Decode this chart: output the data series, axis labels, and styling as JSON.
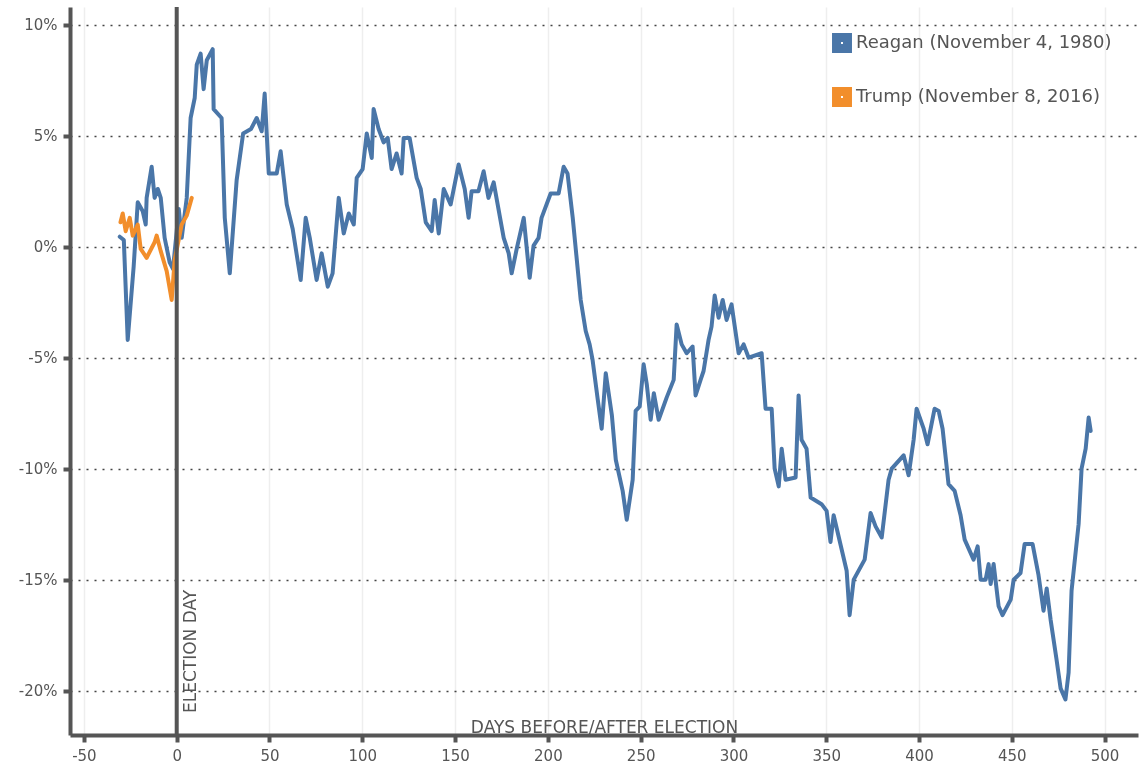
{
  "chart_data": {
    "type": "line",
    "xlabel": "DAYS BEFORE/AFTER ELECTION",
    "xlim": [
      -57.5,
      518
    ],
    "xticks": [
      -50,
      0,
      50,
      100,
      150,
      200,
      250,
      300,
      350,
      400,
      450,
      500
    ],
    "ylim": [
      -22,
      10.8
    ],
    "yticks": [
      {
        "value": 10,
        "label": "10%"
      },
      {
        "value": 5,
        "label": "5%"
      },
      {
        "value": 0,
        "label": "0%"
      },
      {
        "value": -5,
        "label": "-5%"
      },
      {
        "value": -10,
        "label": "-10%"
      },
      {
        "value": -15,
        "label": "-15%"
      },
      {
        "value": -20,
        "label": "-20%"
      }
    ],
    "grid": true,
    "legend": "top right",
    "line_style": "solid",
    "marker": "none",
    "ref_lines": [
      {
        "axis": "x",
        "value": 0,
        "label": "ELECTION DAY",
        "color": "#555555"
      }
    ],
    "series": [
      {
        "name": "Reagan (November 4, 1980)",
        "color": "#4a76a8",
        "x": [
          -30.7,
          -28.5,
          -26.4,
          -23.2,
          -21,
          -18.3,
          -16.7,
          -16.2,
          -13.5,
          -11.9,
          -10.2,
          -8.6,
          -6.5,
          -3.8,
          -2,
          0,
          1.1,
          2.7,
          5.4,
          7.5,
          9.7,
          10.8,
          12.9,
          14.5,
          16.2,
          19.4,
          19.9,
          24.2,
          25.9,
          28.6,
          32.3,
          35.8,
          40,
          43.1,
          45.8,
          47.4,
          49.6,
          53.9,
          56,
          59.3,
          62.5,
          66.8,
          69.5,
          71.7,
          75.4,
          78.1,
          81.4,
          84,
          87.3,
          90,
          92.7,
          95.4,
          97,
          100.2,
          102.4,
          105.1,
          106.1,
          108.8,
          111.5,
          113.7,
          115.8,
          118.5,
          121.2,
          122.3,
          125.5,
          129.3,
          131.5,
          134.2,
          137.4,
          139,
          141.2,
          143.9,
          147.6,
          151.9,
          155.2,
          157.3,
          158.9,
          162.6,
          165.4,
          168,
          170.8,
          176.2,
          178.9,
          180.5,
          183.2,
          187,
          190.2,
          192.3,
          195,
          196.6,
          201.5,
          205.8,
          208.5,
          210.6,
          213.4,
          217.7,
          220.4,
          222.5,
          224.1,
          226.9,
          229,
          231.2,
          234.5,
          236.6,
          240.3,
          242.5,
          245.7,
          247.3,
          249.5,
          251.6,
          253.3,
          255.4,
          257.1,
          259.7,
          264,
          267.8,
          269.4,
          272.1,
          274.8,
          278,
          279.6,
          282.3,
          283.9,
          286.6,
          288.2,
          289.9,
          292,
          294.2,
          296.3,
          299,
          302.8,
          305.5,
          308.2,
          315.2,
          317.3,
          320.6,
          322.2,
          324.4,
          326,
          328.1,
          333.5,
          335.1,
          336.7,
          339.4,
          341.6,
          347.5,
          350.2,
          352.3,
          354,
          361,
          362.6,
          364.8,
          370.7,
          373.9,
          376.6,
          379.9,
          383.6,
          385.3,
          391.7,
          394.4,
          397.1,
          398.7,
          402.5,
          404.6,
          408.4,
          410.6,
          412.7,
          415.9,
          419.2,
          422.4,
          424.6,
          429.4,
          431.6,
          433.2,
          435.9,
          437.5,
          438.6,
          440.2,
          442.9,
          445,
          449.4,
          451,
          454.7,
          456.9,
          461.2,
          464.4,
          467.1,
          468.8,
          470.9,
          474.1,
          476.3,
          478.9,
          480.6,
          482.2,
          486,
          487.6,
          489.8,
          491.4,
          492.5
        ],
        "values": [
          0.45,
          0.3,
          -4.2,
          -0.9,
          2.0,
          1.6,
          1.0,
          2.2,
          3.6,
          2.2,
          2.6,
          2.2,
          0.4,
          -0.7,
          -1.0,
          0.7,
          1.7,
          0.4,
          2.2,
          5.8,
          6.7,
          8.2,
          8.7,
          7.1,
          8.4,
          8.9,
          6.2,
          5.8,
          1.3,
          -1.2,
          3.0,
          5.1,
          5.3,
          5.8,
          5.2,
          6.9,
          3.3,
          3.3,
          4.3,
          1.9,
          0.8,
          -1.5,
          1.3,
          0.4,
          -1.5,
          -0.3,
          -1.8,
          -1.2,
          2.2,
          0.6,
          1.5,
          1.0,
          3.1,
          3.5,
          5.1,
          4.0,
          6.2,
          5.3,
          4.7,
          4.9,
          3.5,
          4.2,
          3.3,
          4.9,
          4.9,
          3.1,
          2.6,
          1.1,
          0.7,
          2.1,
          0.6,
          2.6,
          1.9,
          3.7,
          2.6,
          1.3,
          2.5,
          2.5,
          3.4,
          2.2,
          2.9,
          0.4,
          -0.3,
          -1.2,
          -0.1,
          1.3,
          -1.4,
          0.05,
          0.4,
          1.3,
          2.4,
          2.4,
          3.6,
          3.3,
          1.3,
          -2.4,
          -3.8,
          -4.4,
          -5.1,
          -6.9,
          -8.2,
          -5.7,
          -7.6,
          -9.6,
          -11.0,
          -12.3,
          -10.5,
          -7.4,
          -7.2,
          -5.3,
          -6.2,
          -7.8,
          -6.6,
          -7.8,
          -6.8,
          -6.0,
          -3.5,
          -4.4,
          -4.8,
          -4.5,
          -6.7,
          -6.0,
          -5.6,
          -4.2,
          -3.6,
          -2.2,
          -3.2,
          -2.4,
          -3.3,
          -2.6,
          -4.8,
          -4.4,
          -5.0,
          -4.8,
          -7.3,
          -7.3,
          -10.0,
          -10.8,
          -9.1,
          -10.5,
          -10.4,
          -6.7,
          -8.7,
          -9.1,
          -11.3,
          -11.6,
          -11.9,
          -13.3,
          -12.1,
          -14.6,
          -16.6,
          -15.0,
          -14.1,
          -12.0,
          -12.6,
          -13.1,
          -10.5,
          -10.0,
          -9.4,
          -10.3,
          -8.7,
          -7.3,
          -8.2,
          -8.9,
          -7.3,
          -7.4,
          -8.2,
          -10.7,
          -11.0,
          -12.1,
          -13.2,
          -14.1,
          -13.5,
          -15.0,
          -15.0,
          -14.3,
          -15.2,
          -14.3,
          -16.2,
          -16.6,
          -15.9,
          -15.0,
          -14.7,
          -13.4,
          -13.4,
          -14.8,
          -16.4,
          -15.4,
          -16.8,
          -18.6,
          -19.9,
          -20.4,
          -19.2,
          -15.5,
          -12.5,
          -10.0,
          -9.1,
          -7.7,
          -8.3
        ]
      },
      {
        "name": "Trump (November 8, 2016)",
        "color": "#f28e2b",
        "x": [
          -30.3,
          -29.1,
          -27.5,
          -25.3,
          -23.7,
          -21,
          -19.4,
          -16.2,
          -11.9,
          -10.8,
          -8.6,
          -5.4,
          -2.7,
          -1.1,
          2.7,
          5.4,
          8.1
        ],
        "values": [
          1.1,
          1.5,
          0.7,
          1.3,
          0.5,
          1.0,
          -0.1,
          -0.5,
          0.2,
          0.5,
          -0.2,
          -1.1,
          -2.4,
          -0.6,
          1.0,
          1.4,
          2.2
        ]
      }
    ]
  }
}
